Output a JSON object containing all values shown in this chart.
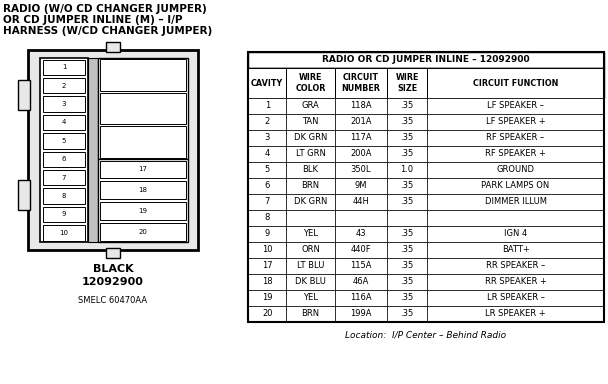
{
  "title_line1": "RADIO (W/O CD CHANGER JUMPER)",
  "title_line2": "OR CD JUMPER INLINE (M) – I/P",
  "title_line3": "HARNESS (W/CD CHANGER JUMPER)",
  "table_title": "RADIO OR CD JUMPER INLINE – 12092900",
  "col_headers": [
    "CAVITY",
    "WIRE\nCOLOR",
    "CIRCUIT\nNUMBER",
    "WIRE\nSIZE",
    "CIRCUIT FUNCTION"
  ],
  "rows": [
    [
      "1",
      "GRA",
      "118A",
      ".35",
      "LF SPEAKER –"
    ],
    [
      "2",
      "TAN",
      "201A",
      ".35",
      "LF SPEAKER +"
    ],
    [
      "3",
      "DK GRN",
      "117A",
      ".35",
      "RF SPEAKER –"
    ],
    [
      "4",
      "LT GRN",
      "200A",
      ".35",
      "RF SPEAKER +"
    ],
    [
      "5",
      "BLK",
      "350L",
      "1.0",
      "GROUND"
    ],
    [
      "6",
      "BRN",
      "9M",
      ".35",
      "PARK LAMPS ON"
    ],
    [
      "7",
      "DK GRN",
      "44H",
      ".35",
      "DIMMER ILLUM"
    ],
    [
      "8",
      "",
      "",
      "",
      ""
    ],
    [
      "9",
      "YEL",
      "43",
      ".35",
      "IGN 4"
    ],
    [
      "10",
      "ORN",
      "440F",
      ".35",
      "BATT+"
    ],
    [
      "17",
      "LT BLU",
      "115A",
      ".35",
      "RR SPEAKER –"
    ],
    [
      "18",
      "DK BLU",
      "46A",
      ".35",
      "RR SPEAKER +"
    ],
    [
      "19",
      "YEL",
      "116A",
      ".35",
      "LR SPEAKER –"
    ],
    [
      "20",
      "BRN",
      "199A",
      ".35",
      "LR SPEAKER +"
    ]
  ],
  "connector_label_line1": "BLACK",
  "connector_label_line2": "12092900",
  "smelc_label": "SMELC 60470AA",
  "location_label": "Location:  I/P Center – Behind Radio",
  "bg_color": "#ffffff"
}
